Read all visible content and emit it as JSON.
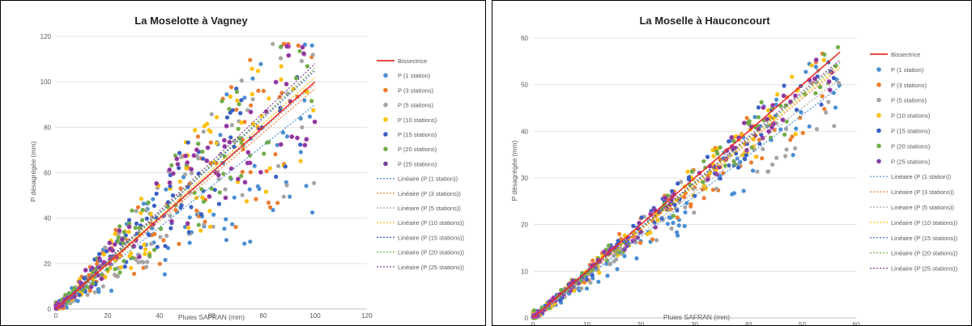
{
  "charts": [
    {
      "chart_data": {
        "type": "scatter",
        "title": "La Moselotte à Vagney",
        "xlabel": "Pluies SAFRAN (mm)",
        "ylabel": "P désagrégée (mm)",
        "xlim": [
          0,
          120
        ],
        "ylim": [
          0,
          120
        ],
        "xticks": [
          "0",
          "20",
          "40",
          "60",
          "80",
          "100",
          "120"
        ],
        "yticks": [
          "0",
          "20",
          "40",
          "60",
          "80",
          "100",
          "120"
        ],
        "grid": "horizontal",
        "legend_position": "right",
        "bisector": {
          "name": "Bissectrice",
          "color": "#e8302a",
          "x": [
            0,
            100
          ],
          "y": [
            0,
            100
          ]
        },
        "series": [
          {
            "name": "P (1 station)",
            "color": "#4b8fd2",
            "trend_name": "Linéaire (P (1 station))",
            "trend_slope": 0.9,
            "spread": 0.55
          },
          {
            "name": "P (3 stations)",
            "color": "#ed7d31",
            "trend_name": "Linéaire (P (3 stations))",
            "trend_slope": 0.97,
            "spread": 0.5
          },
          {
            "name": "P (5 stations)",
            "color": "#a5a5a5",
            "trend_name": "Linéaire (P (5 stations))",
            "trend_slope": 0.99,
            "spread": 0.45
          },
          {
            "name": "P (10 stations)",
            "color": "#ffc000",
            "trend_name": "Linéaire (P (10 stations))",
            "trend_slope": 1.02,
            "spread": 0.45
          },
          {
            "name": "P (15 stations)",
            "color": "#3a5fc4",
            "trend_name": "Linéaire (P (15 stations))",
            "trend_slope": 1.05,
            "spread": 0.4
          },
          {
            "name": "P (20 stations)",
            "color": "#70ad47",
            "trend_name": "Linéaire (P (20 stations))",
            "trend_slope": 1.06,
            "spread": 0.4
          },
          {
            "name": "P (25 stations)",
            "color": "#7b3f99",
            "trend_name": "Linéaire (P (25 stations))",
            "trend_slope": 1.08,
            "spread": 0.35
          }
        ]
      }
    },
    {
      "chart_data": {
        "type": "scatter",
        "title": "La Moselle à Hauconcourt",
        "xlabel": "Pluies SAFRAN (mm)",
        "ylabel": "P désagrégée (mm)",
        "xlim": [
          0,
          60
        ],
        "ylim": [
          0,
          60
        ],
        "xticks": [
          "0",
          "10",
          "20",
          "30",
          "40",
          "50",
          "60"
        ],
        "yticks": [
          "0",
          "10",
          "20",
          "30",
          "40",
          "50",
          "60"
        ],
        "grid": "horizontal",
        "legend_position": "right",
        "bisector": {
          "name": "Bissectrice",
          "color": "#e8302a",
          "x": [
            0,
            57
          ],
          "y": [
            0,
            57
          ]
        },
        "series": [
          {
            "name": "P (1 station)",
            "color": "#4b8fd2",
            "trend_name": "Linéaire (P (1 station))",
            "trend_slope": 0.87,
            "spread": 0.2
          },
          {
            "name": "P (3 stations)",
            "color": "#ed7d31",
            "trend_name": "Linéaire (P (3 stations))",
            "trend_slope": 0.94,
            "spread": 0.16
          },
          {
            "name": "P (5 stations)",
            "color": "#a5a5a5",
            "trend_name": "Linéaire (P (5 stations))",
            "trend_slope": 0.9,
            "spread": 0.18
          },
          {
            "name": "P (10 stations)",
            "color": "#ffc000",
            "trend_name": "Linéaire (P (10 stations))",
            "trend_slope": 0.95,
            "spread": 0.14
          },
          {
            "name": "P (15 stations)",
            "color": "#3a5fc4",
            "trend_name": "Linéaire (P (15 stations))",
            "trend_slope": 0.96,
            "spread": 0.12
          },
          {
            "name": "P (20 stations)",
            "color": "#70ad47",
            "trend_name": "Linéaire (P (20 stations))",
            "trend_slope": 0.96,
            "spread": 0.12
          },
          {
            "name": "P (25 stations)",
            "color": "#7b3f99",
            "trend_name": "Linéaire (P (25 stations))",
            "trend_slope": 0.97,
            "spread": 0.1
          }
        ]
      }
    }
  ]
}
